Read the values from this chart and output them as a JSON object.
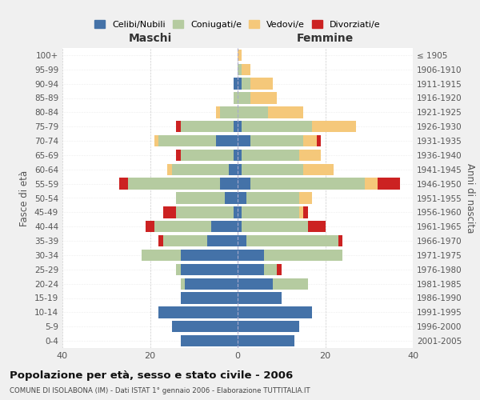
{
  "age_groups": [
    "0-4",
    "5-9",
    "10-14",
    "15-19",
    "20-24",
    "25-29",
    "30-34",
    "35-39",
    "40-44",
    "45-49",
    "50-54",
    "55-59",
    "60-64",
    "65-69",
    "70-74",
    "75-79",
    "80-84",
    "85-89",
    "90-94",
    "95-99",
    "100+"
  ],
  "birth_years": [
    "2001-2005",
    "1996-2000",
    "1991-1995",
    "1986-1990",
    "1981-1985",
    "1976-1980",
    "1971-1975",
    "1966-1970",
    "1961-1965",
    "1956-1960",
    "1951-1955",
    "1946-1950",
    "1941-1945",
    "1936-1940",
    "1931-1935",
    "1926-1930",
    "1921-1925",
    "1916-1920",
    "1911-1915",
    "1906-1910",
    "≤ 1905"
  ],
  "colors": {
    "celibi": "#4472a8",
    "coniugati": "#b5cba0",
    "vedovi": "#f5c87a",
    "divorziati": "#cc2222"
  },
  "maschi": {
    "celibi": [
      13,
      15,
      18,
      13,
      12,
      13,
      13,
      7,
      6,
      1,
      3,
      4,
      2,
      1,
      5,
      1,
      0,
      0,
      1,
      0,
      0
    ],
    "coniugati": [
      0,
      0,
      0,
      0,
      1,
      1,
      9,
      10,
      13,
      13,
      11,
      21,
      13,
      12,
      13,
      12,
      4,
      1,
      0,
      0,
      0
    ],
    "vedovi": [
      0,
      0,
      0,
      0,
      0,
      0,
      0,
      0,
      0,
      0,
      0,
      0,
      1,
      0,
      1,
      0,
      1,
      0,
      0,
      0,
      0
    ],
    "divorziati": [
      0,
      0,
      0,
      0,
      0,
      0,
      0,
      1,
      2,
      3,
      0,
      2,
      0,
      1,
      0,
      1,
      0,
      0,
      0,
      0,
      0
    ]
  },
  "femmine": {
    "celibi": [
      13,
      14,
      17,
      10,
      8,
      6,
      6,
      2,
      1,
      1,
      2,
      3,
      1,
      1,
      3,
      1,
      0,
      0,
      1,
      0,
      0
    ],
    "coniugati": [
      0,
      0,
      0,
      0,
      8,
      3,
      18,
      21,
      15,
      13,
      12,
      26,
      14,
      13,
      12,
      16,
      7,
      3,
      2,
      1,
      0
    ],
    "vedovi": [
      0,
      0,
      0,
      0,
      0,
      0,
      0,
      0,
      0,
      1,
      3,
      3,
      7,
      5,
      3,
      10,
      8,
      6,
      5,
      2,
      1
    ],
    "divorziati": [
      0,
      0,
      0,
      0,
      0,
      1,
      0,
      1,
      4,
      1,
      0,
      5,
      0,
      0,
      1,
      0,
      0,
      0,
      0,
      0,
      0
    ]
  },
  "title": "Popolazione per età, sesso e stato civile - 2006",
  "subtitle": "COMUNE DI ISOLABONA (IM) - Dati ISTAT 1° gennaio 2006 - Elaborazione TUTTITALIA.IT",
  "xlabel_left": "Maschi",
  "xlabel_right": "Femmine",
  "ylabel_left": "Fasce di età",
  "ylabel_right": "Anni di nascita",
  "xlim": 40,
  "legend_labels": [
    "Celibi/Nubili",
    "Coniugati/e",
    "Vedovi/e",
    "Divorziati/e"
  ],
  "bg_color": "#f0f0f0",
  "plot_bg_color": "#ffffff"
}
